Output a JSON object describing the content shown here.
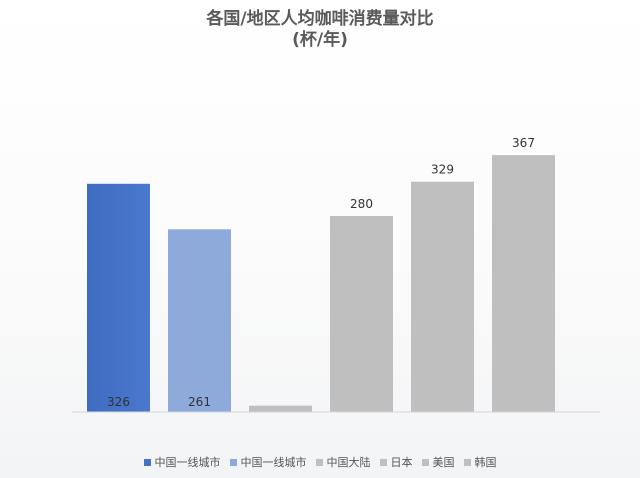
{
  "chart_data": {
    "type": "bar",
    "title": "各国/地区人均咖啡消费量对比",
    "subtitle": "(杯/年)",
    "categories": [
      "中国一线城市",
      "中国一线城市",
      "中国大陆",
      "日本",
      "美国",
      "韩国"
    ],
    "values": [
      326,
      261,
      9,
      280,
      329,
      367
    ],
    "data_labels": [
      "326",
      "261",
      "",
      "280",
      "329",
      "367"
    ],
    "ylim": [
      0,
      400
    ],
    "grid": false,
    "legend_position": "bottom",
    "colors": [
      "#4472c4",
      "#8eaadb",
      "#bfbfbf",
      "#bfbfbf",
      "#bfbfbf",
      "#bfbfbf"
    ],
    "legend_colors": [
      "#4472c4",
      "#8eaadb",
      "#bfbfbf",
      "#bfbfbf",
      "#bfbfbf",
      "#bfbfbf"
    ]
  }
}
